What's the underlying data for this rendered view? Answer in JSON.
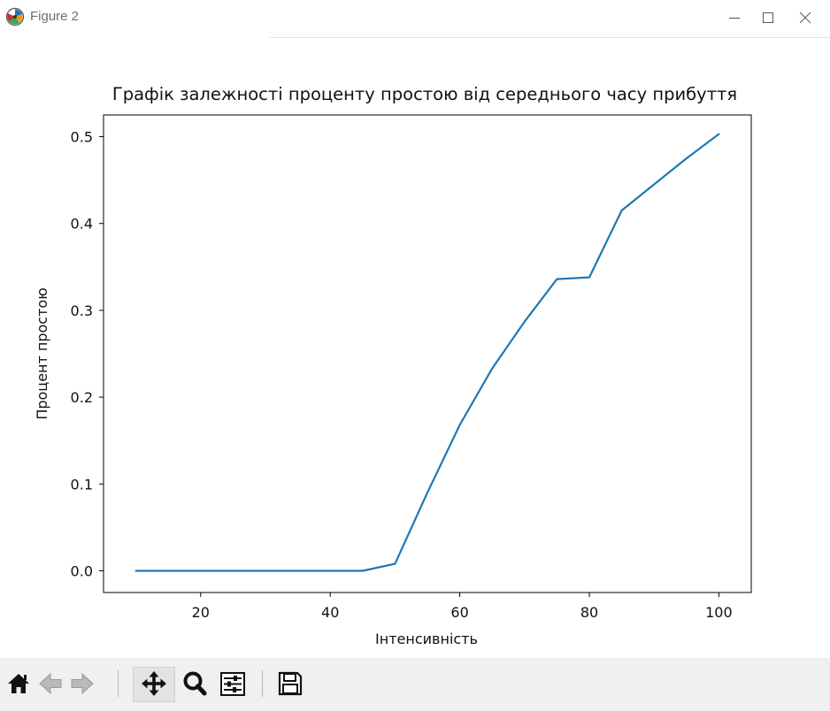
{
  "window": {
    "title": "Figure 2",
    "icons": [
      "app-icon",
      "minimize-icon",
      "maximize-icon",
      "close-icon"
    ]
  },
  "chart_data": {
    "type": "line",
    "title": "Графік залежності проценту простою від середнього часу прибуття",
    "xlabel": "Інтенсивність",
    "ylabel": "Процент простою",
    "xlim": [
      5,
      105
    ],
    "ylim": [
      -0.025,
      0.525
    ],
    "xticks": [
      20,
      40,
      60,
      80,
      100
    ],
    "yticks": [
      0.0,
      0.1,
      0.2,
      0.3,
      0.4,
      0.5
    ],
    "xtick_labels": [
      "20",
      "40",
      "60",
      "80",
      "100"
    ],
    "ytick_labels": [
      "0.0",
      "0.1",
      "0.2",
      "0.3",
      "0.4",
      "0.5"
    ],
    "grid": false,
    "series": [
      {
        "color": "#1f77b4",
        "x": [
          10,
          15,
          20,
          25,
          30,
          35,
          40,
          45,
          50,
          55,
          60,
          65,
          70,
          75,
          80,
          85,
          90,
          95,
          100
        ],
        "values": [
          0.0,
          0.0,
          0.0,
          0.0,
          0.0,
          0.0,
          0.0,
          0.0,
          0.008,
          0.09,
          0.168,
          0.233,
          0.287,
          0.336,
          0.338,
          0.415,
          0.445,
          0.475,
          0.503
        ]
      }
    ]
  },
  "toolbar": {
    "buttons": [
      {
        "name": "home-button",
        "icon": "home-icon"
      },
      {
        "name": "back-button",
        "icon": "arrow-left-icon"
      },
      {
        "name": "forward-button",
        "icon": "arrow-right-icon"
      },
      {
        "name": "pan-button",
        "icon": "move-icon"
      },
      {
        "name": "zoom-button",
        "icon": "magnifier-icon"
      },
      {
        "name": "configure-subplots-button",
        "icon": "sliders-icon"
      },
      {
        "name": "save-button",
        "icon": "floppy-disk-icon"
      }
    ]
  }
}
